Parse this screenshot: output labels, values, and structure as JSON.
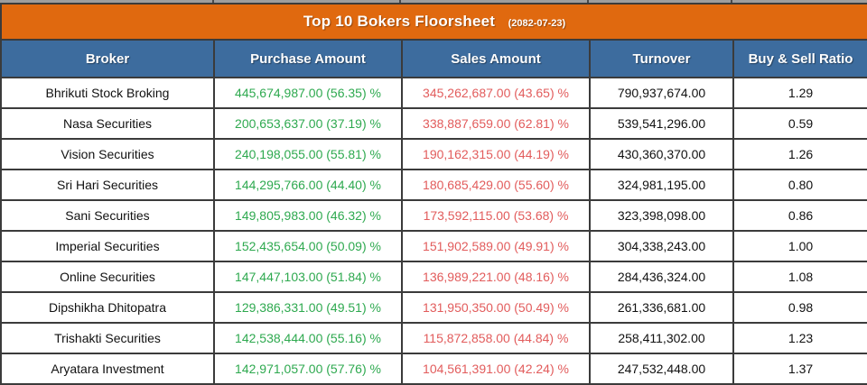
{
  "title": {
    "text": "Top 10 Bokers Floorsheet",
    "date": "(2082-07-23)"
  },
  "colors": {
    "title_bg": "#E0690F",
    "header_bg": "#3D6C9E",
    "purchase_green": "#2EA94F",
    "sales_red": "#E25C5C",
    "border_dark": "#3B3B3B",
    "top_strip_gray": "#9E9E9E",
    "text_dark": "#111111"
  },
  "chart_data": {
    "type": "table",
    "title": "Top 10 Bokers Floorsheet",
    "subtitle": "(2082-07-23)",
    "columns": [
      "Broker",
      "Purchase Amount",
      "Sales Amount",
      "Turnover",
      "Buy & Sell Ratio"
    ],
    "rows": [
      [
        "Bhrikuti Stock Broking",
        "445,674,987.00 (56.35) %",
        "345,262,687.00 (43.65) %",
        "790,937,674.00",
        "1.29"
      ],
      [
        "Nasa Securities",
        "200,653,637.00 (37.19) %",
        "338,887,659.00 (62.81) %",
        "539,541,296.00",
        "0.59"
      ],
      [
        "Vision Securities",
        "240,198,055.00 (55.81) %",
        "190,162,315.00 (44.19) %",
        "430,360,370.00",
        "1.26"
      ],
      [
        "Sri Hari Securities",
        "144,295,766.00 (44.40) %",
        "180,685,429.00 (55.60) %",
        "324,981,195.00",
        "0.80"
      ],
      [
        "Sani Securities",
        "149,805,983.00 (46.32) %",
        "173,592,115.00 (53.68) %",
        "323,398,098.00",
        "0.86"
      ],
      [
        "Imperial Securities",
        "152,435,654.00 (50.09) %",
        "151,902,589.00 (49.91) %",
        "304,338,243.00",
        "1.00"
      ],
      [
        "Online Securities",
        "147,447,103.00 (51.84) %",
        "136,989,221.00 (48.16) %",
        "284,436,324.00",
        "1.08"
      ],
      [
        "Dipshikha Dhitopatra",
        "129,386,331.00 (49.51) %",
        "131,950,350.00 (50.49) %",
        "261,336,681.00",
        "0.98"
      ],
      [
        "Trishakti Securities",
        "142,538,444.00 (55.16) %",
        "115,872,858.00 (44.84) %",
        "258,411,302.00",
        "1.23"
      ],
      [
        "Aryatara Investment",
        "142,971,057.00 (57.76) %",
        "104,561,391.00 (42.24) %",
        "247,532,448.00",
        "1.37"
      ]
    ]
  }
}
